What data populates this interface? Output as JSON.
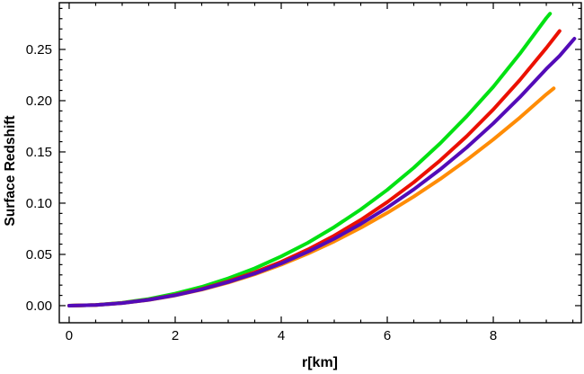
{
  "figure": {
    "background": "#ffffff",
    "frame_color": "#000000",
    "xlabel": "r[km]",
    "ylabel": "Surface Redshift"
  },
  "chart_data": {
    "type": "line",
    "title": "",
    "xlabel": "r[km]",
    "ylabel": "Surface Redshift",
    "xlim": [
      -0.186,
      9.66
    ],
    "ylim": [
      -0.0167,
      0.2956
    ],
    "grid": false,
    "legend_position": "none",
    "frame": true,
    "x_major_ticks": [
      0,
      2,
      4,
      6,
      8
    ],
    "x_major_labels": [
      "0",
      "2",
      "4",
      "6",
      "8"
    ],
    "x_minor_step": 0.5,
    "y_major_ticks": [
      0.0,
      0.05,
      0.1,
      0.15,
      0.2,
      0.25
    ],
    "y_major_labels": [
      "0.00",
      "0.05",
      "0.10",
      "0.15",
      "0.20",
      "0.25"
    ],
    "y_minor_step": 0.01,
    "series": [
      {
        "name": "curve-green",
        "color": "#00e112",
        "stroke_width": 4,
        "points": [
          [
            0,
            0
          ],
          [
            0.5,
            0.0007
          ],
          [
            1,
            0.0029
          ],
          [
            1.5,
            0.0065
          ],
          [
            2,
            0.0117
          ],
          [
            2.5,
            0.0183
          ],
          [
            3,
            0.0266
          ],
          [
            3.5,
            0.0364
          ],
          [
            4,
            0.048
          ],
          [
            4.5,
            0.0613
          ],
          [
            5,
            0.0766
          ],
          [
            5.5,
            0.0938
          ],
          [
            6,
            0.113
          ],
          [
            6.5,
            0.1345
          ],
          [
            7,
            0.1584
          ],
          [
            7.5,
            0.1848
          ],
          [
            8,
            0.2135
          ],
          [
            8.5,
            0.2457
          ],
          [
            9,
            0.2807
          ],
          [
            9.07,
            0.2849
          ]
        ]
      },
      {
        "name": "curve-red",
        "color": "#eb1000",
        "stroke_width": 4,
        "points": [
          [
            0,
            0
          ],
          [
            0.5,
            0.0006
          ],
          [
            1,
            0.0026
          ],
          [
            1.5,
            0.0058
          ],
          [
            2,
            0.0104
          ],
          [
            2.5,
            0.0163
          ],
          [
            3,
            0.0237
          ],
          [
            3.5,
            0.0325
          ],
          [
            4,
            0.0428
          ],
          [
            4.5,
            0.0547
          ],
          [
            5,
            0.0683
          ],
          [
            5.5,
            0.0837
          ],
          [
            6,
            0.101
          ],
          [
            6.5,
            0.1203
          ],
          [
            7,
            0.1417
          ],
          [
            7.5,
            0.1653
          ],
          [
            8,
            0.1914
          ],
          [
            8.5,
            0.2201
          ],
          [
            9,
            0.2515
          ],
          [
            9.25,
            0.268
          ]
        ]
      },
      {
        "name": "curve-orange",
        "color": "#ff8c05",
        "stroke_width": 4,
        "points": [
          [
            0,
            0
          ],
          [
            0.5,
            0.0006
          ],
          [
            1,
            0.0025
          ],
          [
            1.5,
            0.0056
          ],
          [
            2,
            0.01
          ],
          [
            2.5,
            0.0156
          ],
          [
            3,
            0.0225
          ],
          [
            3.5,
            0.0306
          ],
          [
            4,
            0.04
          ],
          [
            4.5,
            0.0507
          ],
          [
            5,
            0.0627
          ],
          [
            5.5,
            0.0759
          ],
          [
            6,
            0.0905
          ],
          [
            6.5,
            0.1064
          ],
          [
            7,
            0.1236
          ],
          [
            7.5,
            0.1422
          ],
          [
            8,
            0.1621
          ],
          [
            8.5,
            0.1834
          ],
          [
            9,
            0.2062
          ],
          [
            9.14,
            0.212
          ]
        ]
      },
      {
        "name": "curve-purple",
        "color": "#530bb8",
        "stroke_width": 4,
        "points": [
          [
            0,
            0
          ],
          [
            0.5,
            0.0006
          ],
          [
            1,
            0.0025
          ],
          [
            1.5,
            0.0057
          ],
          [
            2,
            0.0101
          ],
          [
            2.5,
            0.0159
          ],
          [
            3,
            0.023
          ],
          [
            3.5,
            0.0314
          ],
          [
            4,
            0.0412
          ],
          [
            4.5,
            0.0525
          ],
          [
            5,
            0.0653
          ],
          [
            5.5,
            0.0797
          ],
          [
            6,
            0.0957
          ],
          [
            6.5,
            0.1134
          ],
          [
            7,
            0.133
          ],
          [
            7.5,
            0.1544
          ],
          [
            8,
            0.1778
          ],
          [
            8.5,
            0.2033
          ],
          [
            9,
            0.231
          ],
          [
            9.25,
            0.2437
          ],
          [
            9.53,
            0.2605
          ]
        ]
      }
    ]
  }
}
